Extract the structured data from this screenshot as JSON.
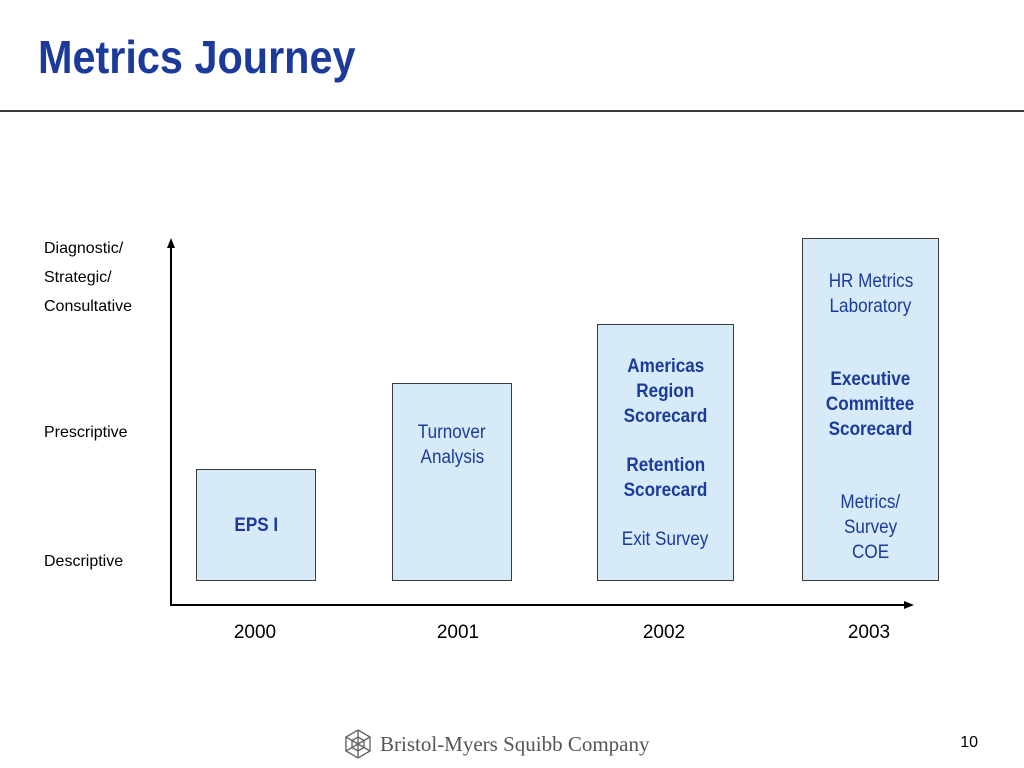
{
  "slide": {
    "title": "Metrics Journey",
    "page_number": "10"
  },
  "y_axis": {
    "levels": [
      {
        "lines": [
          "Diagnostic/",
          "Strategic/",
          "Consultative"
        ]
      },
      {
        "lines": [
          "Prescriptive"
        ]
      },
      {
        "lines": [
          "Descriptive"
        ]
      }
    ]
  },
  "x_axis": {
    "years": [
      "2000",
      "2001",
      "2002",
      "2003"
    ]
  },
  "stages": {
    "y2000": {
      "item1": "EPS I"
    },
    "y2001": {
      "line1": "Turnover",
      "line2": "Analysis"
    },
    "y2002": {
      "a1": "Americas",
      "a2": "Region",
      "a3": "Scorecard",
      "r1": "Retention",
      "r2": "Scorecard",
      "e1": "Exit Survey"
    },
    "y2003": {
      "h1": "HR Metrics",
      "h2": "Laboratory",
      "x1": "Executive",
      "x2": "Committee",
      "x3": "Scorecard",
      "m1": "Metrics/",
      "m2": "Survey",
      "m3": "COE"
    }
  },
  "footer": {
    "company": "Bristol-Myers Squibb Company",
    "logo_icon": "bms-logo-icon"
  },
  "colors": {
    "title_blue": "#1b3a9a",
    "box_fill": "#d6eaf8",
    "axis": "#000000"
  }
}
